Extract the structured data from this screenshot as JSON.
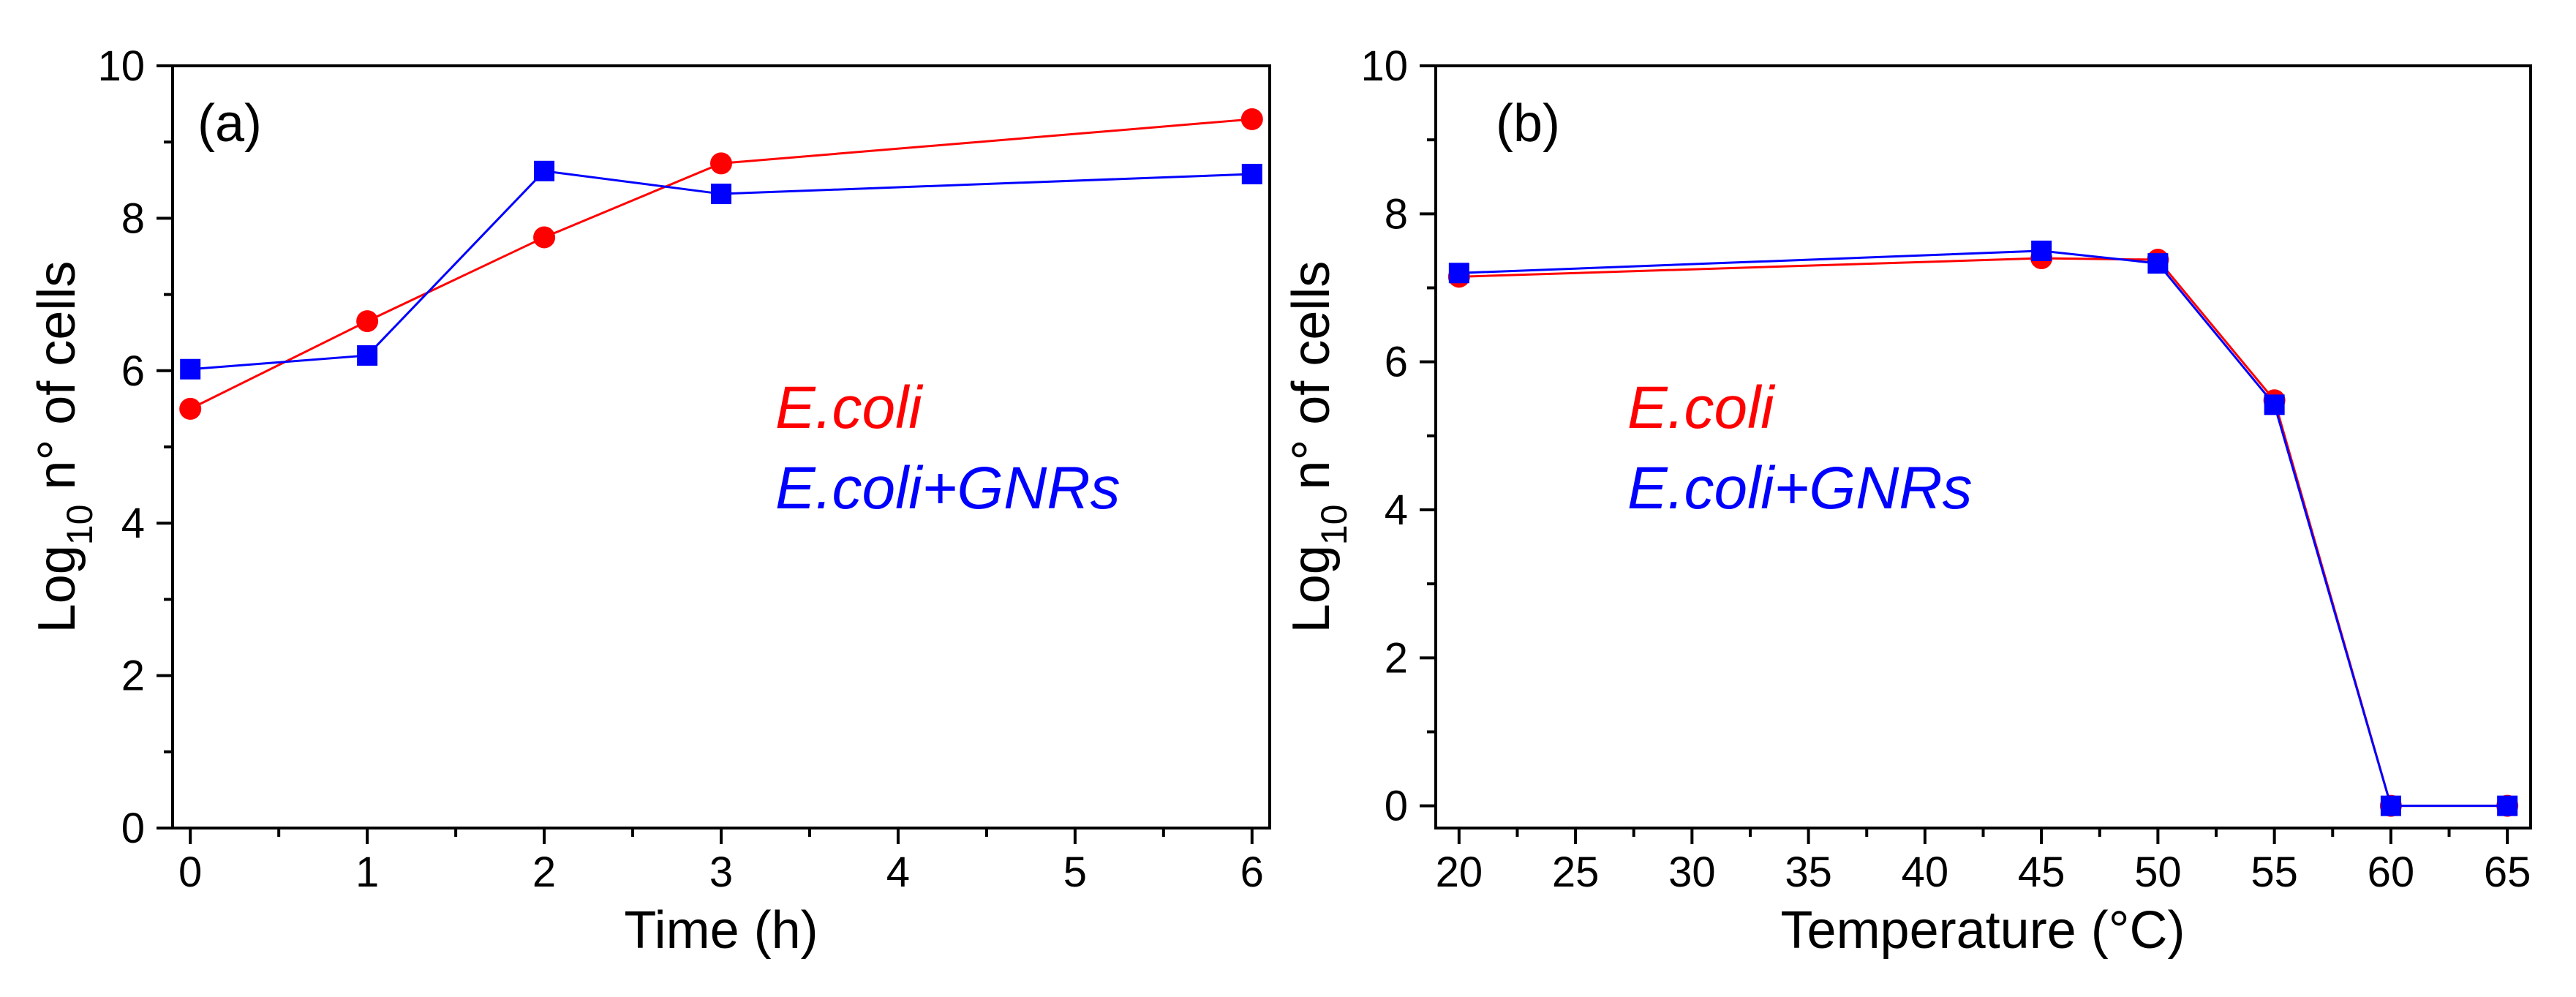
{
  "chart_data": [
    {
      "type": "line",
      "panel_label": "(a)",
      "xlabel": "Time (h)",
      "ylabel": {
        "main": "Log",
        "sub": "10",
        "rest": " n° of cells"
      },
      "xlim": [
        -0.1,
        6.1
      ],
      "ylim": [
        0,
        10
      ],
      "x_ticks": [
        0,
        1,
        2,
        3,
        4,
        5,
        6
      ],
      "y_ticks": [
        0,
        2,
        4,
        6,
        8,
        10
      ],
      "legend": {
        "placement": "center-right"
      },
      "series": [
        {
          "name": "E.coli",
          "color": "#ff0000",
          "marker": "circle",
          "x": [
            0,
            1,
            2,
            3,
            6
          ],
          "y": [
            5.5,
            6.65,
            7.75,
            8.72,
            9.3
          ]
        },
        {
          "name": "E.coli+GNRs",
          "color": "#0000ff",
          "marker": "square",
          "x": [
            0,
            1,
            2,
            3,
            6
          ],
          "y": [
            6.02,
            6.2,
            8.62,
            8.32,
            8.58
          ]
        }
      ]
    },
    {
      "type": "line",
      "panel_label": "(b)",
      "xlabel": "Temperature (°C)",
      "ylabel": {
        "main": "Log",
        "sub": "10",
        "rest": " n° of cells"
      },
      "xlim": [
        19,
        66
      ],
      "ylim": [
        -0.3,
        10
      ],
      "x_ticks": [
        20,
        25,
        30,
        35,
        40,
        45,
        50,
        55,
        60,
        65
      ],
      "y_ticks": [
        0,
        2,
        4,
        6,
        8,
        10
      ],
      "legend": {
        "placement": "center-left"
      },
      "series": [
        {
          "name": "E.coli",
          "color": "#ff0000",
          "marker": "circle",
          "x": [
            20,
            45,
            50,
            55,
            60,
            65
          ],
          "y": [
            7.15,
            7.4,
            7.38,
            5.48,
            0,
            0
          ]
        },
        {
          "name": "E.coli+GNRs",
          "color": "#0000ff",
          "marker": "square",
          "x": [
            20,
            45,
            50,
            55,
            60,
            65
          ],
          "y": [
            7.2,
            7.5,
            7.33,
            5.42,
            0,
            0
          ]
        }
      ]
    }
  ]
}
